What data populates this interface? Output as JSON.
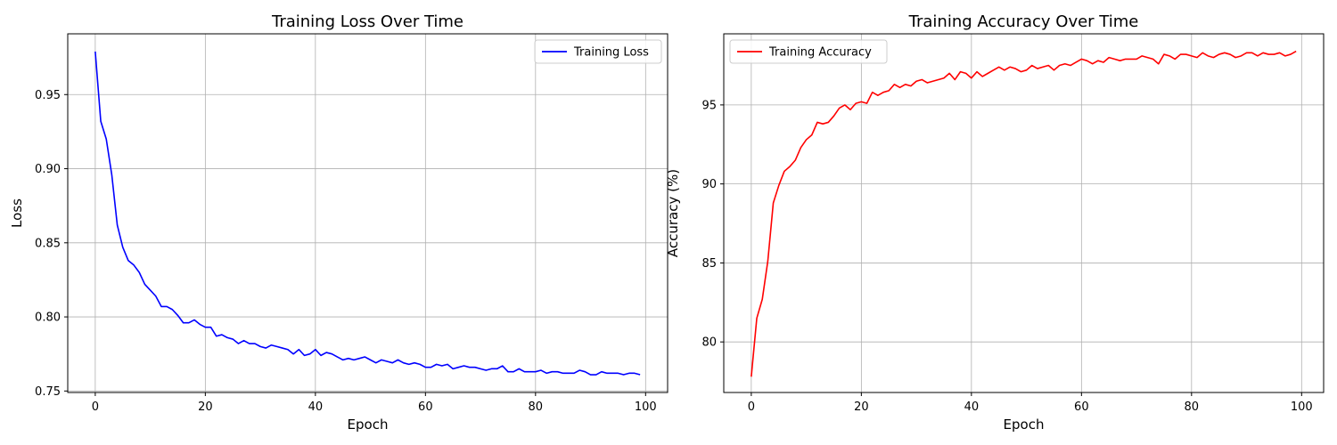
{
  "chart_data": [
    {
      "type": "line",
      "title": "Training Loss Over Time",
      "xlabel": "Epoch",
      "ylabel": "Loss",
      "xlim": [
        -5,
        104
      ],
      "ylim": [
        0.749,
        0.991
      ],
      "xticks": [
        0,
        20,
        40,
        60,
        80,
        100
      ],
      "yticks": [
        0.75,
        0.8,
        0.85,
        0.9,
        0.95
      ],
      "ytick_labels": [
        "0.75",
        "0.80",
        "0.85",
        "0.90",
        "0.95"
      ],
      "grid": true,
      "legend": "top-right",
      "series": [
        {
          "name": "Training Loss",
          "color": "#0000ff",
          "values": [
            0.979,
            0.932,
            0.92,
            0.896,
            0.862,
            0.847,
            0.838,
            0.835,
            0.83,
            0.822,
            0.818,
            0.814,
            0.807,
            0.807,
            0.805,
            0.801,
            0.796,
            0.796,
            0.798,
            0.795,
            0.793,
            0.793,
            0.787,
            0.788,
            0.786,
            0.785,
            0.782,
            0.784,
            0.782,
            0.782,
            0.78,
            0.779,
            0.781,
            0.78,
            0.779,
            0.778,
            0.775,
            0.778,
            0.774,
            0.775,
            0.778,
            0.774,
            0.776,
            0.775,
            0.773,
            0.771,
            0.772,
            0.771,
            0.772,
            0.773,
            0.771,
            0.769,
            0.771,
            0.77,
            0.769,
            0.771,
            0.769,
            0.768,
            0.769,
            0.768,
            0.766,
            0.766,
            0.768,
            0.767,
            0.768,
            0.765,
            0.766,
            0.767,
            0.766,
            0.766,
            0.765,
            0.764,
            0.765,
            0.765,
            0.767,
            0.763,
            0.763,
            0.765,
            0.763,
            0.763,
            0.763,
            0.764,
            0.762,
            0.763,
            0.763,
            0.762,
            0.762,
            0.762,
            0.764,
            0.763,
            0.761,
            0.761,
            0.763,
            0.762,
            0.762,
            0.762,
            0.761,
            0.762,
            0.762,
            0.761
          ]
        }
      ]
    },
    {
      "type": "line",
      "title": "Training Accuracy Over Time",
      "xlabel": "Epoch",
      "ylabel": "Accuracy (%)",
      "xlim": [
        -5,
        104
      ],
      "ylim": [
        76.8,
        99.5
      ],
      "xticks": [
        0,
        20,
        40,
        60,
        80,
        100
      ],
      "yticks": [
        80,
        85,
        90,
        95
      ],
      "ytick_labels": [
        "80",
        "85",
        "90",
        "95"
      ],
      "grid": true,
      "legend": "top-left",
      "series": [
        {
          "name": "Training Accuracy",
          "color": "#ff0000",
          "values": [
            77.8,
            81.5,
            82.7,
            85.1,
            88.8,
            89.9,
            90.8,
            91.1,
            91.5,
            92.3,
            92.8,
            93.1,
            93.9,
            93.8,
            93.9,
            94.3,
            94.8,
            95.0,
            94.7,
            95.1,
            95.2,
            95.1,
            95.8,
            95.6,
            95.8,
            95.9,
            96.3,
            96.1,
            96.3,
            96.2,
            96.5,
            96.6,
            96.4,
            96.5,
            96.6,
            96.7,
            97.0,
            96.6,
            97.1,
            97.0,
            96.7,
            97.1,
            96.8,
            97.0,
            97.2,
            97.4,
            97.2,
            97.4,
            97.3,
            97.1,
            97.2,
            97.5,
            97.3,
            97.4,
            97.5,
            97.2,
            97.5,
            97.6,
            97.5,
            97.7,
            97.9,
            97.8,
            97.6,
            97.8,
            97.7,
            98.0,
            97.9,
            97.8,
            97.9,
            97.9,
            97.9,
            98.1,
            98.0,
            97.9,
            97.6,
            98.2,
            98.1,
            97.9,
            98.2,
            98.2,
            98.1,
            98.0,
            98.3,
            98.1,
            98.0,
            98.2,
            98.3,
            98.2,
            98.0,
            98.1,
            98.3,
            98.3,
            98.1,
            98.3,
            98.2,
            98.2,
            98.3,
            98.1,
            98.2,
            98.4
          ]
        }
      ]
    }
  ]
}
